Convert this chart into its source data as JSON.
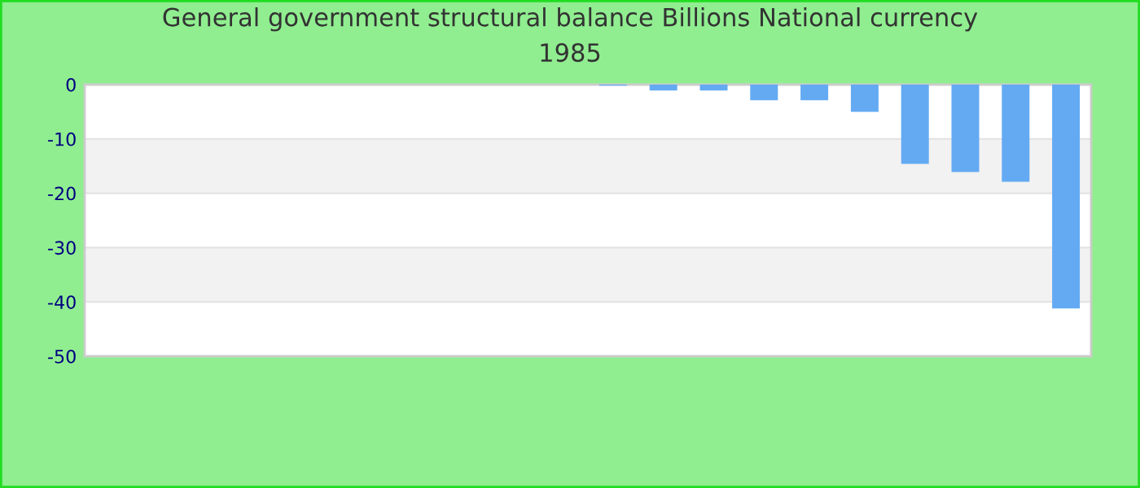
{
  "chart_data": {
    "type": "bar",
    "title": "General government structural balance Billions National currency\n1985",
    "categories": [
      null,
      null,
      null,
      null,
      null,
      null,
      null,
      null,
      null,
      null,
      null,
      null,
      null,
      null,
      null,
      null,
      null,
      null,
      null,
      null
    ],
    "values": [
      null,
      null,
      null,
      null,
      null,
      null,
      null,
      null,
      null,
      null,
      -0.2,
      -1.1,
      -1.1,
      -2.9,
      -2.9,
      -5.0,
      -14.6,
      -16.1,
      -17.9,
      -41.2
    ],
    "color": "#63aaf2",
    "ylim": [
      -50,
      0
    ],
    "yticks": [
      -50,
      -40,
      -30,
      -20,
      -10,
      0
    ],
    "grid": "y"
  }
}
